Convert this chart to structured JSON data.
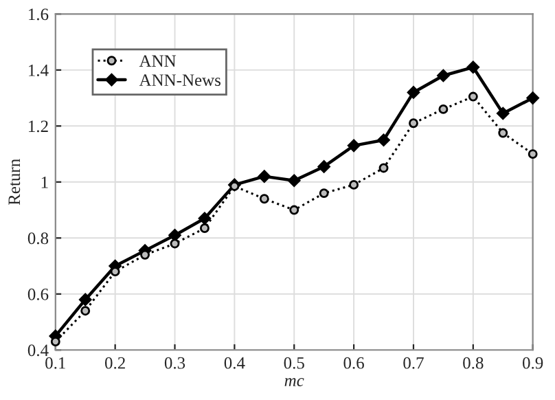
{
  "chart_data": {
    "type": "line",
    "xlabel": "mc",
    "ylabel": "Return",
    "x": [
      0.1,
      0.15,
      0.2,
      0.25,
      0.3,
      0.35,
      0.4,
      0.45,
      0.5,
      0.55,
      0.6,
      0.65,
      0.7,
      0.75,
      0.8,
      0.85,
      0.9
    ],
    "series": [
      {
        "name": "ANN",
        "color": "#000000",
        "marker": "circle",
        "line_style": "dotted",
        "values": [
          0.43,
          0.54,
          0.68,
          0.74,
          0.78,
          0.835,
          0.985,
          0.94,
          0.9,
          0.96,
          0.99,
          1.05,
          1.21,
          1.26,
          1.305,
          1.175,
          1.1
        ]
      },
      {
        "name": "ANN-News",
        "color": "#000000",
        "marker": "diamond",
        "line_style": "solid",
        "values": [
          0.45,
          0.58,
          0.7,
          0.755,
          0.81,
          0.87,
          0.99,
          1.02,
          1.005,
          1.055,
          1.13,
          1.15,
          1.32,
          1.38,
          1.41,
          1.245,
          1.3
        ]
      }
    ],
    "xlim": [
      0.1,
      0.9
    ],
    "xticks": [
      0.1,
      0.2,
      0.3,
      0.4,
      0.5,
      0.6,
      0.7,
      0.8,
      0.9
    ],
    "ylim": [
      0.4,
      1.6
    ],
    "yticks": [
      0.4,
      0.6,
      0.8,
      1,
      1.2,
      1.4,
      1.6
    ],
    "grid": true,
    "legend": "top left"
  }
}
